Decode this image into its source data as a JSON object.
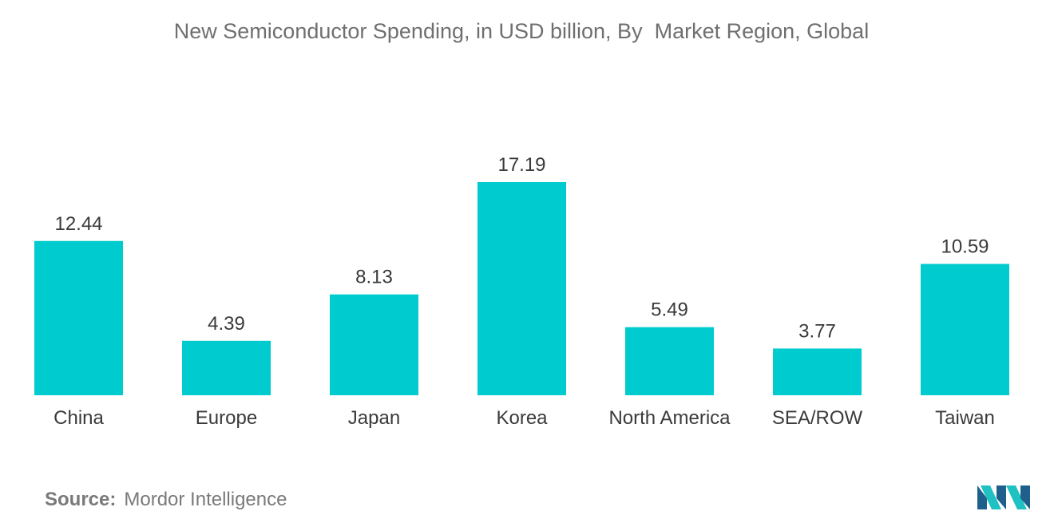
{
  "chart_data": {
    "type": "bar",
    "title": "New Semiconductor Spending, in USD billion, By  Market Region, Global",
    "categories": [
      "China",
      "Europe",
      "Japan",
      "Korea",
      "North America",
      "SEA/ROW",
      "Taiwan"
    ],
    "values": [
      12.44,
      4.39,
      8.13,
      17.19,
      5.49,
      3.77,
      10.59
    ],
    "data_labels": [
      "12.44",
      "4.39",
      "8.13",
      "17.19",
      "5.49",
      "3.77",
      "10.59"
    ],
    "xlabel": "",
    "ylabel": "",
    "ylim": [
      0,
      17.19
    ],
    "grid": false,
    "bar_color": "#00cccf"
  },
  "footer": {
    "source_label": "Source:",
    "source_value": "Mordor Intelligence"
  },
  "colors": {
    "title": "#6f6f6f",
    "label": "#3a3a3a",
    "source": "#7a7a7a",
    "logo_dark": "#1f5f8b",
    "logo_light": "#1fc1c3"
  }
}
